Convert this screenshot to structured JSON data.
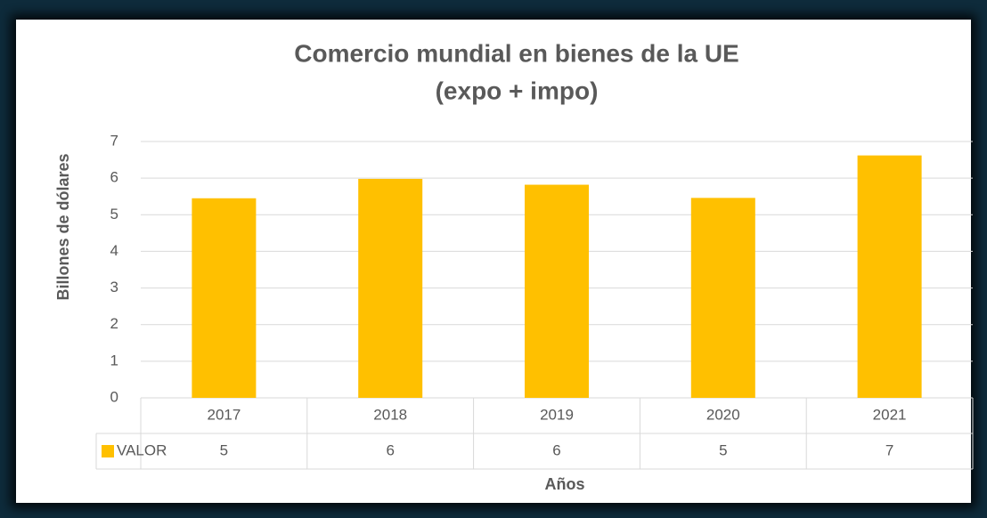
{
  "chart_data": {
    "type": "bar",
    "title": [
      "Comercio mundial en bienes de la UE",
      "(expo + impo)"
    ],
    "y_label": "Billones de dólares",
    "x_label": "Años",
    "categories": [
      "2017",
      "2018",
      "2019",
      "2020",
      "2021"
    ],
    "series": [
      {
        "name": "VALOR",
        "color": "#ffc000",
        "values": [
          5.45,
          5.98,
          5.82,
          5.46,
          6.62
        ],
        "value_labels": [
          "5",
          "6",
          "6",
          "5",
          "7"
        ]
      }
    ],
    "ylim": [
      0,
      7
    ],
    "yticks": [
      0,
      1,
      2,
      3,
      4,
      5,
      6,
      7
    ],
    "grid": true,
    "data_table": true
  }
}
